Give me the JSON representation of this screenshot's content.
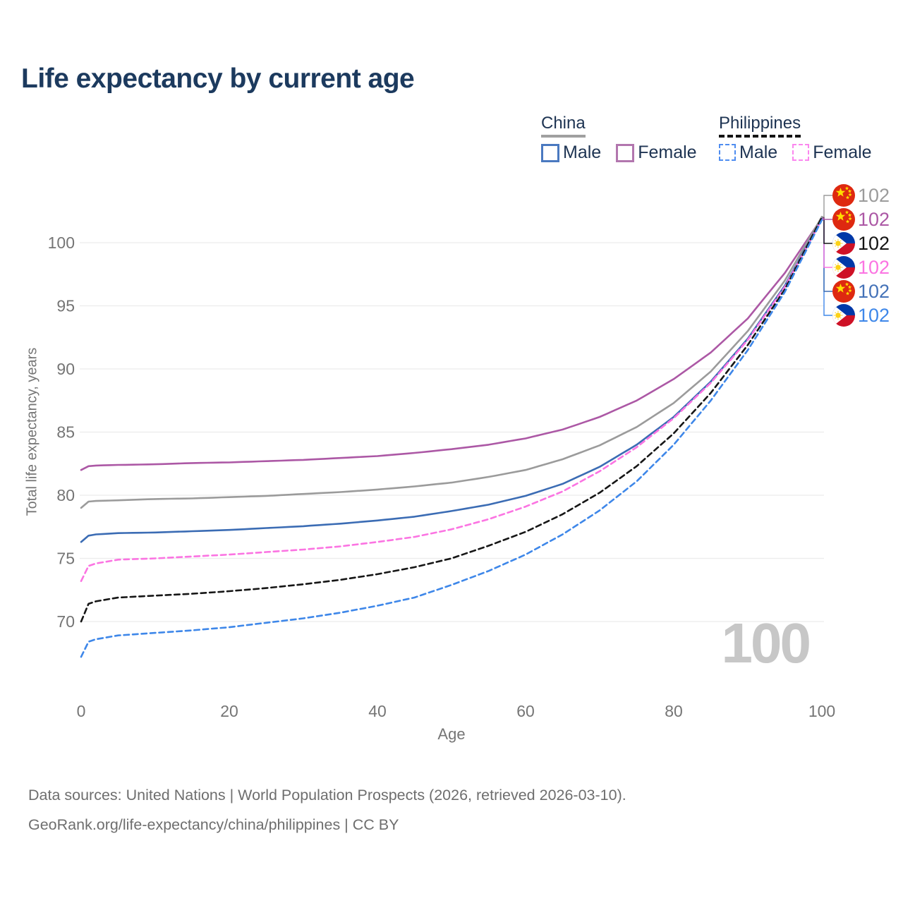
{
  "chart_data": {
    "type": "line",
    "title": "Life expectancy by current age",
    "xlabel": "Age",
    "ylabel": "Total life expectancy, years",
    "watermark": "100",
    "x_ticks": [
      0,
      20,
      40,
      60,
      80,
      100
    ],
    "y_ticks": [
      70,
      75,
      80,
      85,
      90,
      95,
      100
    ],
    "xlim": [
      0,
      100
    ],
    "ylim": [
      67,
      102.5
    ],
    "grid": "horizontal",
    "axis_text_color": "#757575",
    "gridline_color": "#ececec",
    "series": [
      {
        "id": "cn-female",
        "country": "China",
        "label": "Female",
        "color": "#ac58a5",
        "dash": "solid",
        "end_value": 101.95,
        "points": [
          [
            0,
            82.0
          ],
          [
            1,
            82.3
          ],
          [
            2,
            82.35
          ],
          [
            5,
            82.4
          ],
          [
            10,
            82.45
          ],
          [
            15,
            82.55
          ],
          [
            20,
            82.6
          ],
          [
            25,
            82.7
          ],
          [
            30,
            82.8
          ],
          [
            35,
            82.95
          ],
          [
            40,
            83.1
          ],
          [
            45,
            83.35
          ],
          [
            50,
            83.65
          ],
          [
            55,
            84.0
          ],
          [
            60,
            84.5
          ],
          [
            65,
            85.2
          ],
          [
            70,
            86.2
          ],
          [
            75,
            87.5
          ],
          [
            80,
            89.2
          ],
          [
            85,
            91.3
          ],
          [
            90,
            94.0
          ],
          [
            95,
            97.6
          ],
          [
            100,
            101.95
          ]
        ]
      },
      {
        "id": "cn-total",
        "country": "China",
        "label": "China",
        "color": "#9b9b9b",
        "dash": "solid",
        "end_value": 102.05,
        "points": [
          [
            0,
            79.0
          ],
          [
            1,
            79.5
          ],
          [
            2,
            79.55
          ],
          [
            5,
            79.6
          ],
          [
            10,
            79.7
          ],
          [
            15,
            79.75
          ],
          [
            20,
            79.85
          ],
          [
            25,
            79.95
          ],
          [
            30,
            80.1
          ],
          [
            35,
            80.25
          ],
          [
            40,
            80.45
          ],
          [
            45,
            80.7
          ],
          [
            50,
            81.0
          ],
          [
            55,
            81.45
          ],
          [
            60,
            82.0
          ],
          [
            65,
            82.85
          ],
          [
            70,
            83.95
          ],
          [
            75,
            85.4
          ],
          [
            80,
            87.3
          ],
          [
            85,
            89.8
          ],
          [
            90,
            93.0
          ],
          [
            95,
            97.0
          ],
          [
            100,
            102.05
          ]
        ]
      },
      {
        "id": "cn-male",
        "country": "China",
        "label": "Male",
        "color": "#3b6cb4",
        "dash": "solid",
        "end_value": 101.9,
        "points": [
          [
            0,
            76.3
          ],
          [
            1,
            76.8
          ],
          [
            2,
            76.9
          ],
          [
            5,
            77.0
          ],
          [
            10,
            77.05
          ],
          [
            15,
            77.15
          ],
          [
            20,
            77.25
          ],
          [
            25,
            77.4
          ],
          [
            30,
            77.55
          ],
          [
            35,
            77.75
          ],
          [
            40,
            78.0
          ],
          [
            45,
            78.3
          ],
          [
            50,
            78.75
          ],
          [
            55,
            79.25
          ],
          [
            60,
            79.95
          ],
          [
            65,
            80.9
          ],
          [
            70,
            82.25
          ],
          [
            75,
            84.0
          ],
          [
            80,
            86.2
          ],
          [
            85,
            89.0
          ],
          [
            90,
            92.4
          ],
          [
            95,
            96.6
          ],
          [
            100,
            101.9
          ]
        ]
      },
      {
        "id": "ph-female",
        "country": "Philippines",
        "label": "Female",
        "color": "#fb74e2",
        "dash": "dashed",
        "end_value": 101.85,
        "points": [
          [
            0,
            73.2
          ],
          [
            1,
            74.4
          ],
          [
            2,
            74.6
          ],
          [
            5,
            74.9
          ],
          [
            10,
            75.0
          ],
          [
            15,
            75.15
          ],
          [
            20,
            75.3
          ],
          [
            25,
            75.5
          ],
          [
            30,
            75.7
          ],
          [
            35,
            75.95
          ],
          [
            40,
            76.3
          ],
          [
            45,
            76.7
          ],
          [
            50,
            77.3
          ],
          [
            55,
            78.1
          ],
          [
            60,
            79.1
          ],
          [
            65,
            80.3
          ],
          [
            70,
            81.9
          ],
          [
            75,
            83.8
          ],
          [
            80,
            86.1
          ],
          [
            85,
            88.9
          ],
          [
            90,
            92.3
          ],
          [
            95,
            96.5
          ],
          [
            100,
            101.85
          ]
        ]
      },
      {
        "id": "ph-total",
        "country": "Philippines",
        "label": "Philippines",
        "color": "#161616",
        "dash": "dashed",
        "end_value": 102.0,
        "points": [
          [
            0,
            70.0
          ],
          [
            1,
            71.4
          ],
          [
            2,
            71.6
          ],
          [
            5,
            71.9
          ],
          [
            10,
            72.05
          ],
          [
            15,
            72.2
          ],
          [
            20,
            72.4
          ],
          [
            25,
            72.65
          ],
          [
            30,
            72.95
          ],
          [
            35,
            73.3
          ],
          [
            40,
            73.75
          ],
          [
            45,
            74.3
          ],
          [
            50,
            75.0
          ],
          [
            55,
            76.0
          ],
          [
            60,
            77.1
          ],
          [
            65,
            78.5
          ],
          [
            70,
            80.2
          ],
          [
            75,
            82.3
          ],
          [
            80,
            84.9
          ],
          [
            85,
            88.1
          ],
          [
            90,
            91.9
          ],
          [
            95,
            96.3
          ],
          [
            100,
            102.0
          ]
        ]
      },
      {
        "id": "ph-male",
        "country": "Philippines",
        "label": "Male",
        "color": "#3e87e9",
        "dash": "dashed",
        "end_value": 101.8,
        "points": [
          [
            0,
            67.2
          ],
          [
            1,
            68.4
          ],
          [
            2,
            68.6
          ],
          [
            5,
            68.9
          ],
          [
            10,
            69.1
          ],
          [
            15,
            69.3
          ],
          [
            20,
            69.55
          ],
          [
            25,
            69.9
          ],
          [
            30,
            70.25
          ],
          [
            35,
            70.7
          ],
          [
            40,
            71.25
          ],
          [
            45,
            71.9
          ],
          [
            50,
            72.9
          ],
          [
            55,
            74.0
          ],
          [
            60,
            75.3
          ],
          [
            65,
            76.9
          ],
          [
            70,
            78.8
          ],
          [
            75,
            81.1
          ],
          [
            80,
            84.0
          ],
          [
            85,
            87.5
          ],
          [
            90,
            91.5
          ],
          [
            95,
            96.1
          ],
          [
            100,
            101.8
          ]
        ]
      }
    ],
    "end_labels": [
      {
        "series": "cn-total",
        "flag": "china",
        "text": "102",
        "color": "#9b9b9b"
      },
      {
        "series": "cn-female",
        "flag": "china",
        "text": "102",
        "color": "#ac58a5"
      },
      {
        "series": "ph-total",
        "flag": "philippines",
        "text": "102",
        "color": "#141414"
      },
      {
        "series": "ph-female",
        "flag": "philippines",
        "text": "102",
        "color": "#fb74e2"
      },
      {
        "series": "cn-male",
        "flag": "china",
        "text": "102",
        "color": "#4472b8"
      },
      {
        "series": "ph-male",
        "flag": "philippines",
        "text": "102",
        "color": "#3e87e9"
      }
    ],
    "flag_colors": {
      "china_red": "#de2910",
      "china_star": "#ffde00",
      "ph_blue": "#0038a8",
      "ph_red": "#ce1126",
      "ph_sun": "#fcd116"
    }
  },
  "legend": {
    "groups": [
      {
        "label": "China",
        "underline": "solid",
        "underline_color": "#a0a0a0",
        "items": [
          {
            "label": "Male",
            "color": "#4a79c0",
            "dash": "solid"
          },
          {
            "label": "Female",
            "color": "#b276ae",
            "dash": "solid"
          }
        ]
      },
      {
        "label": "Philippines",
        "underline": "dashed",
        "underline_color": "#141414",
        "items": [
          {
            "label": "Male",
            "color": "#4f8df0",
            "dash": "dashed"
          },
          {
            "label": "Female",
            "color": "#fb87ef",
            "dash": "dashed"
          }
        ]
      }
    ]
  },
  "footer": {
    "line1": "Data sources: United Nations | World Population Prospects (2026, retrieved 2026-03-10).",
    "line2": "GeoRank.org/life-expectancy/china/philippines | CC BY"
  }
}
